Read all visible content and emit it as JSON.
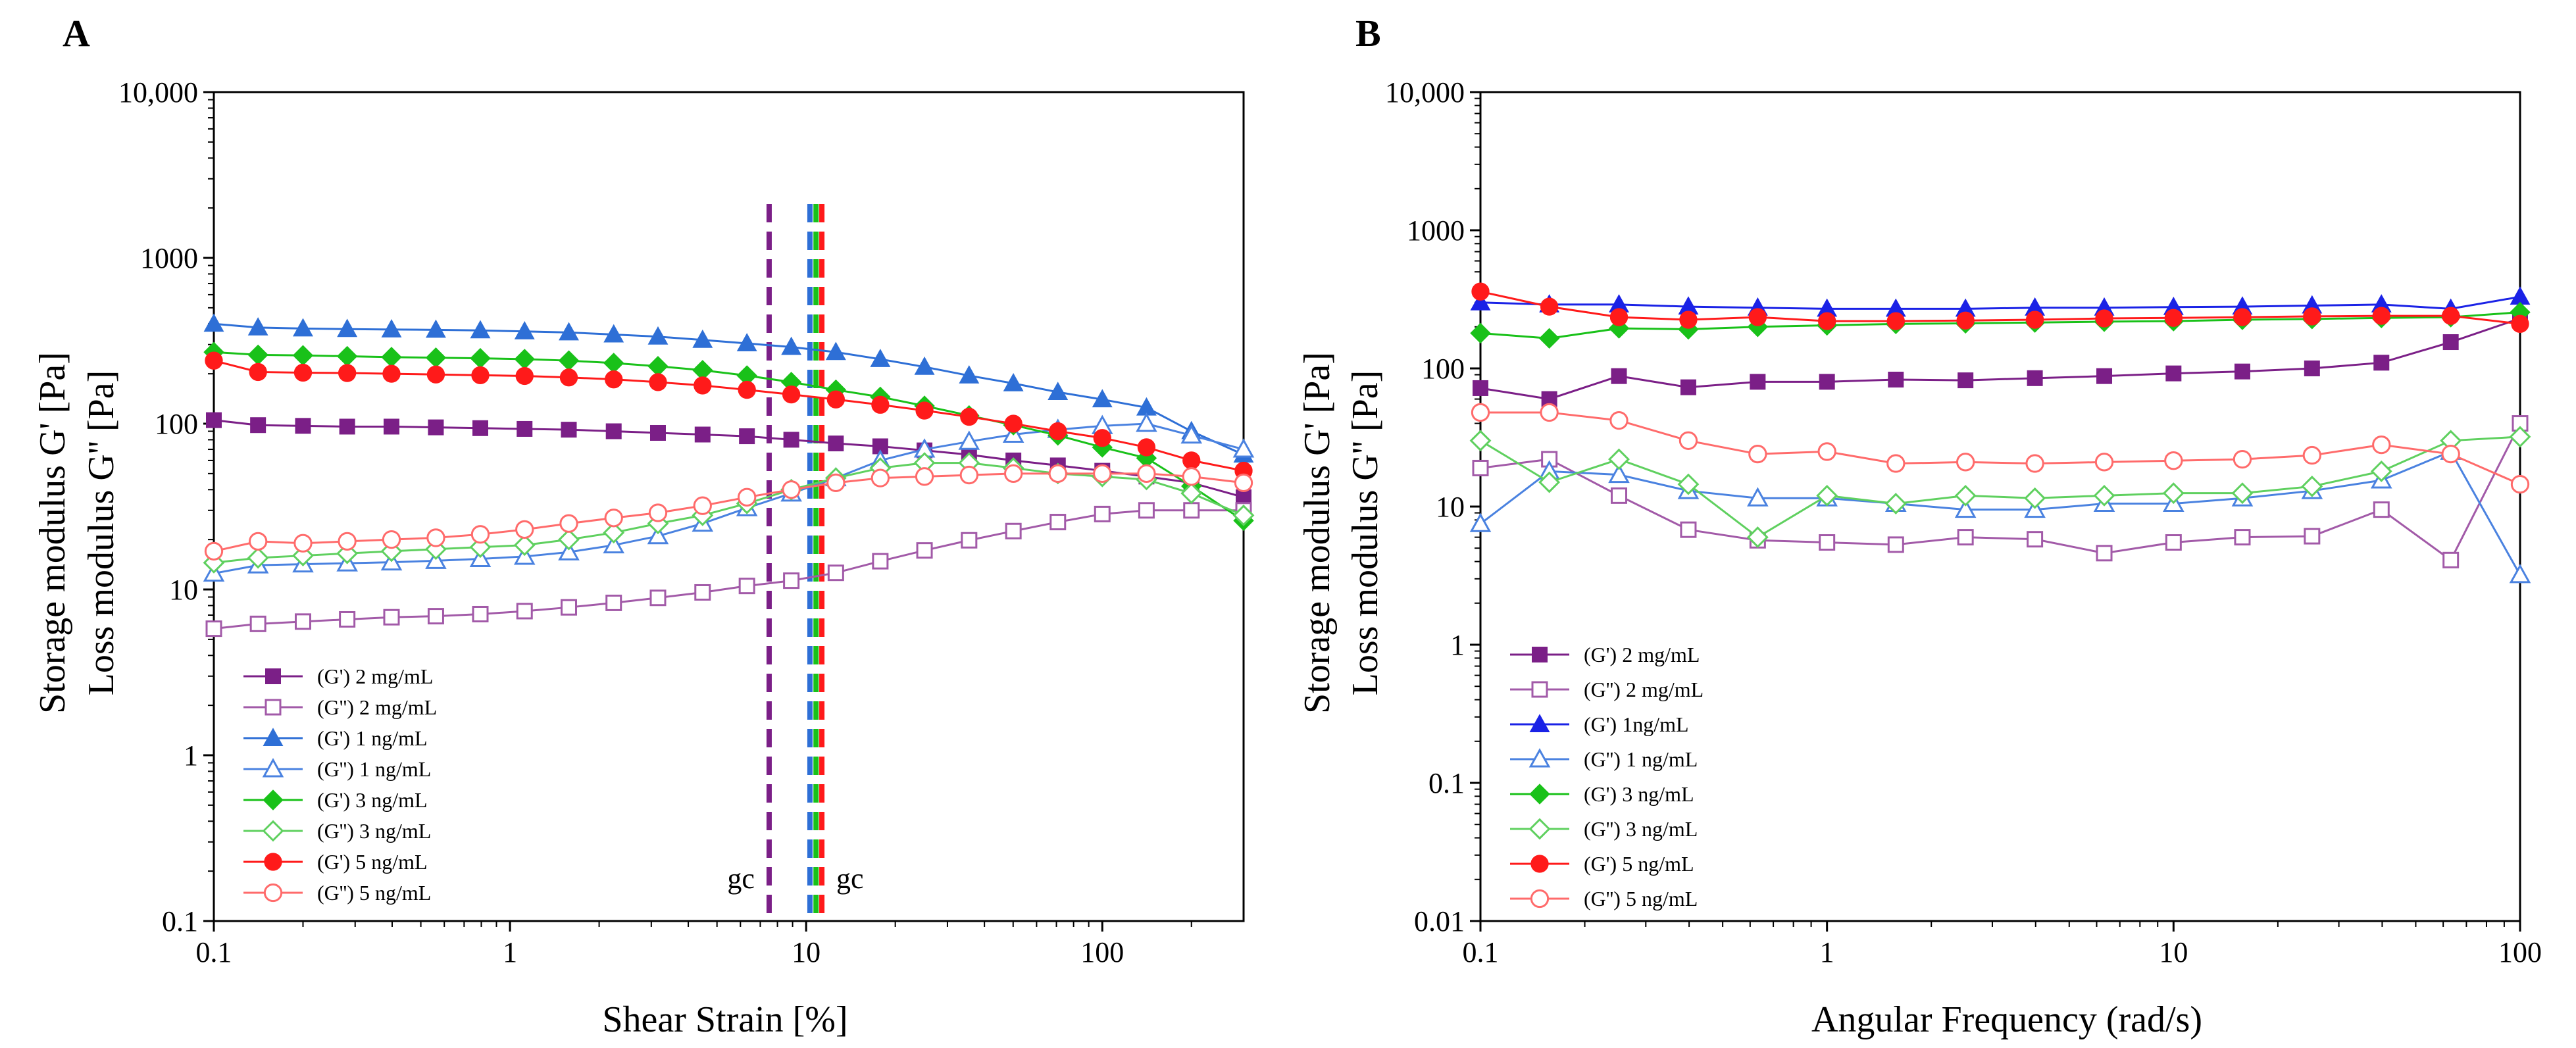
{
  "chart_data": [
    {
      "panel_label": "A",
      "type": "line",
      "xlabel": "Shear Strain [%]",
      "ylabel_line1": "Storage modulus G' [Pa]",
      "ylabel_line2": "Loss modulus G'' [Pa]",
      "xscale": "log",
      "yscale": "log",
      "xlim": [
        0.1,
        300
      ],
      "ylim": [
        0.1,
        10000
      ],
      "x_ticks": [
        0.1,
        1,
        10,
        100
      ],
      "x_tick_labels": [
        "0.1",
        "1",
        "10",
        "100"
      ],
      "y_ticks": [
        0.1,
        1,
        10,
        100,
        1000,
        10000
      ],
      "y_tick_labels": [
        "0.1",
        "1",
        "10",
        "100",
        "1000",
        "10,000"
      ],
      "legend_position": "lower-left",
      "x": [
        0.1,
        0.141,
        0.2,
        0.282,
        0.398,
        0.562,
        0.794,
        1.12,
        1.58,
        2.24,
        3.16,
        4.47,
        6.31,
        8.91,
        12.6,
        17.8,
        25.1,
        35.5,
        50.1,
        70.8,
        100,
        141,
        200,
        300
      ],
      "series": [
        {
          "name": "(G') 2 mg/mL",
          "color": "#7b1f87",
          "marker": "square",
          "filled": true,
          "values": [
            105,
            98,
            97,
            96,
            96,
            95,
            94,
            93,
            92,
            90,
            88,
            86,
            84,
            80,
            76,
            73,
            69,
            65,
            60,
            56,
            52,
            48,
            44,
            36
          ]
        },
        {
          "name": "(G'') 2 mg/mL",
          "color": "#a25aa8",
          "marker": "square",
          "filled": false,
          "values": [
            5.8,
            6.2,
            6.4,
            6.6,
            6.8,
            6.9,
            7.1,
            7.4,
            7.8,
            8.3,
            8.9,
            9.6,
            10.5,
            11.3,
            12.6,
            14.8,
            17.2,
            19.8,
            22.5,
            25.5,
            28.5,
            30,
            30,
            30
          ]
        },
        {
          "name": "(G') 1 ng/mL",
          "color": "#2e6fd6",
          "marker": "triangle",
          "filled": true,
          "values": [
            400,
            380,
            375,
            372,
            370,
            368,
            365,
            360,
            355,
            345,
            335,
            320,
            305,
            290,
            270,
            245,
            220,
            195,
            175,
            155,
            140,
            125,
            90,
            65
          ]
        },
        {
          "name": "(G'') 1 ng/mL",
          "color": "#4a82e0",
          "marker": "triangle",
          "filled": false,
          "values": [
            12.5,
            14,
            14.2,
            14.4,
            14.6,
            14.9,
            15.3,
            15.8,
            16.8,
            18.5,
            21,
            25,
            31,
            38,
            47,
            60,
            70,
            78,
            86,
            92,
            97,
            100,
            85,
            70
          ]
        },
        {
          "name": "(G') 3 ng/mL",
          "color": "#19c119",
          "marker": "diamond",
          "filled": true,
          "values": [
            270,
            260,
            258,
            255,
            252,
            250,
            248,
            245,
            240,
            232,
            222,
            210,
            195,
            178,
            160,
            145,
            128,
            112,
            98,
            85,
            72,
            62,
            42,
            26
          ]
        },
        {
          "name": "(G'') 3 ng/mL",
          "color": "#5fd05f",
          "marker": "diamond",
          "filled": false,
          "values": [
            14.5,
            15.5,
            16,
            16.5,
            17,
            17.5,
            18,
            18.5,
            20,
            22,
            25,
            28,
            33,
            40,
            47,
            54,
            58,
            58,
            54,
            50,
            48,
            46,
            38,
            28
          ]
        },
        {
          "name": "(G') 5 ng/mL",
          "color": "#ff1a1a",
          "marker": "circle",
          "filled": true,
          "values": [
            240,
            205,
            203,
            202,
            200,
            198,
            196,
            194,
            190,
            185,
            178,
            170,
            160,
            150,
            140,
            130,
            120,
            110,
            100,
            90,
            82,
            72,
            60,
            52
          ]
        },
        {
          "name": "(G'') 5 ng/mL",
          "color": "#ff6b6b",
          "marker": "circle",
          "filled": false,
          "values": [
            17,
            19.5,
            19,
            19.5,
            20,
            20.5,
            21.5,
            23,
            25,
            27,
            29,
            32,
            36,
            40,
            44,
            47,
            48,
            49,
            50,
            50,
            50,
            50,
            48,
            44
          ]
        }
      ],
      "annotations": [
        {
          "text": "gc",
          "x": 7.5,
          "color": "#7b1f87",
          "side": "left"
        },
        {
          "text": "gc",
          "x": 11.3,
          "color": "#ff1a1a",
          "side": "right"
        }
      ],
      "crossover_lines": [
        {
          "x": 7.5,
          "color": "#7b1f87"
        },
        {
          "x": 10.3,
          "color": "#2e6fd6"
        },
        {
          "x": 10.8,
          "color": "#19c119"
        },
        {
          "x": 11.3,
          "color": "#ff1a1a"
        }
      ]
    },
    {
      "panel_label": "B",
      "type": "line",
      "xlabel": "Angular Frequency (rad/s)",
      "ylabel_line1": "Storage modulus G' [Pa]",
      "ylabel_line2": "Loss modulus G'' [Pa]",
      "xscale": "log",
      "yscale": "log",
      "xlim": [
        0.1,
        100
      ],
      "ylim": [
        0.01,
        10000
      ],
      "x_ticks": [
        0.1,
        1,
        10,
        100
      ],
      "x_tick_labels": [
        "0.1",
        "1",
        "10",
        "100"
      ],
      "y_ticks": [
        0.01,
        0.1,
        1,
        10,
        100,
        1000,
        10000
      ],
      "y_tick_labels": [
        "0.01",
        "0.1",
        "1",
        "10",
        "100",
        "1000",
        "10,000"
      ],
      "legend_position": "lower-left",
      "x": [
        0.1,
        0.158,
        0.251,
        0.398,
        0.631,
        1,
        1.58,
        2.51,
        3.98,
        6.31,
        10,
        15.8,
        25.1,
        39.8,
        63.1,
        100
      ],
      "series": [
        {
          "name": "(G') 2 mg/mL",
          "color": "#7b1f87",
          "marker": "square",
          "filled": true,
          "values": [
            72,
            60,
            88,
            73,
            80,
            80,
            83,
            82,
            85,
            88,
            92,
            95,
            100,
            110,
            155,
            230
          ]
        },
        {
          "name": "(G'') 2 mg/mL",
          "color": "#a25aa8",
          "marker": "square",
          "filled": false,
          "values": [
            19,
            22,
            12,
            6.8,
            5.7,
            5.5,
            5.3,
            6,
            5.8,
            4.6,
            5.5,
            6,
            6.1,
            9.5,
            4.1,
            40
          ]
        },
        {
          "name": "(G') 1ng/mL",
          "color": "#1a22e6",
          "marker": "triangle",
          "filled": true,
          "values": [
            300,
            290,
            290,
            280,
            275,
            270,
            270,
            270,
            275,
            275,
            278,
            280,
            285,
            290,
            270,
            330
          ]
        },
        {
          "name": "(G'') 1 ng/mL",
          "color": "#4a82e0",
          "marker": "triangle",
          "filled": false,
          "values": [
            7.5,
            18,
            17,
            13,
            11.5,
            11.5,
            10.5,
            9.5,
            9.5,
            10.5,
            10.5,
            11.5,
            13,
            15.5,
            25,
            3.2
          ]
        },
        {
          "name": "(G') 3 ng/mL",
          "color": "#19c119",
          "marker": "diamond",
          "filled": true,
          "values": [
            180,
            165,
            195,
            192,
            200,
            205,
            210,
            212,
            215,
            218,
            220,
            225,
            228,
            232,
            235,
            255
          ]
        },
        {
          "name": "(G'') 3 ng/mL",
          "color": "#5fd05f",
          "marker": "diamond",
          "filled": false,
          "values": [
            30,
            15,
            22,
            14.5,
            6,
            12,
            10.5,
            12,
            11.5,
            12,
            12.5,
            12.5,
            14,
            18,
            30,
            32
          ]
        },
        {
          "name": "(G') 5 ng/mL",
          "color": "#ff1a1a",
          "marker": "circle",
          "filled": true,
          "values": [
            360,
            280,
            235,
            225,
            235,
            220,
            220,
            222,
            225,
            230,
            232,
            235,
            238,
            240,
            240,
            210
          ]
        },
        {
          "name": "(G'') 5 ng/mL",
          "color": "#ff6b6b",
          "marker": "circle",
          "filled": false,
          "values": [
            48,
            48,
            42,
            30,
            24,
            25,
            20.5,
            21,
            20.5,
            21,
            21.5,
            22,
            23.5,
            28,
            24,
            14.5
          ]
        }
      ]
    }
  ]
}
